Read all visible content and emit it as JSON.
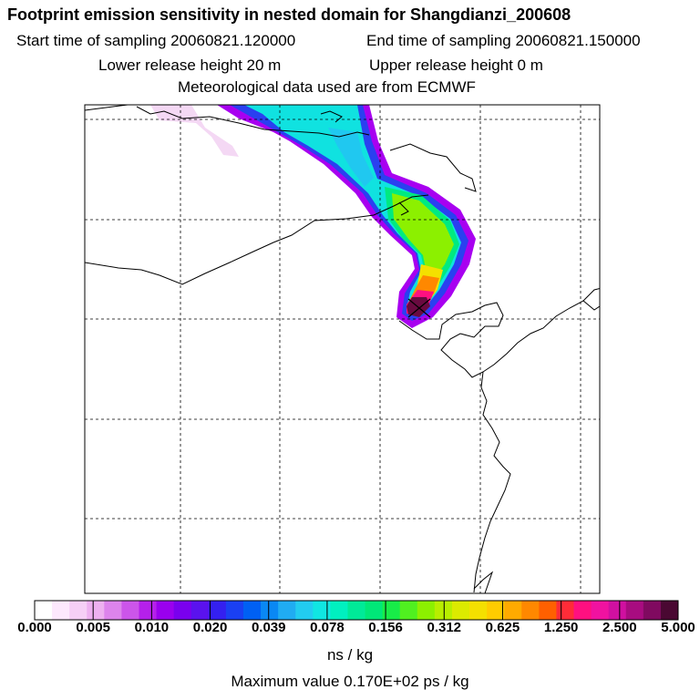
{
  "title": "Footprint emission sensitivity in nested domain for Shangdianzi_200608",
  "start_label": "Start time of sampling 20060821.120000",
  "end_label": "End time of sampling 20060821.150000",
  "lower_label": "Lower release height   20 m",
  "upper_label": "Upper release height    0 m",
  "met_label": "Meteorological data used are from ECMWF",
  "colorbar": {
    "ticks": [
      "0.000",
      "0.005",
      "0.010",
      "0.020",
      "0.039",
      "0.078",
      "0.156",
      "0.312",
      "0.625",
      "1.250",
      "2.500",
      "5.000"
    ],
    "colors": [
      "#ffffff",
      "#fde8fd",
      "#f6cff6",
      "#eeb0f0",
      "#dd84ec",
      "#cc55ea",
      "#b520ea",
      "#9a00ee",
      "#7a00ee",
      "#5a12ee",
      "#3420f0",
      "#1a40f2",
      "#0060f4",
      "#0a88f4",
      "#20acf2",
      "#22ccf0",
      "#10e6e2",
      "#00f0c0",
      "#00ea98",
      "#00e878",
      "#18ec48",
      "#50f020",
      "#8cf000",
      "#b8ee00",
      "#dcea00",
      "#f4e000",
      "#ffcc00",
      "#ffaa00",
      "#ff8800",
      "#ff6000",
      "#ff2c38",
      "#ff1080",
      "#f012a0",
      "#d010a0",
      "#a80c80",
      "#800a60",
      "#4a0832"
    ],
    "unit": "ns / kg"
  },
  "max_value": "Maximum value  0.170E+02 ps / kg"
}
